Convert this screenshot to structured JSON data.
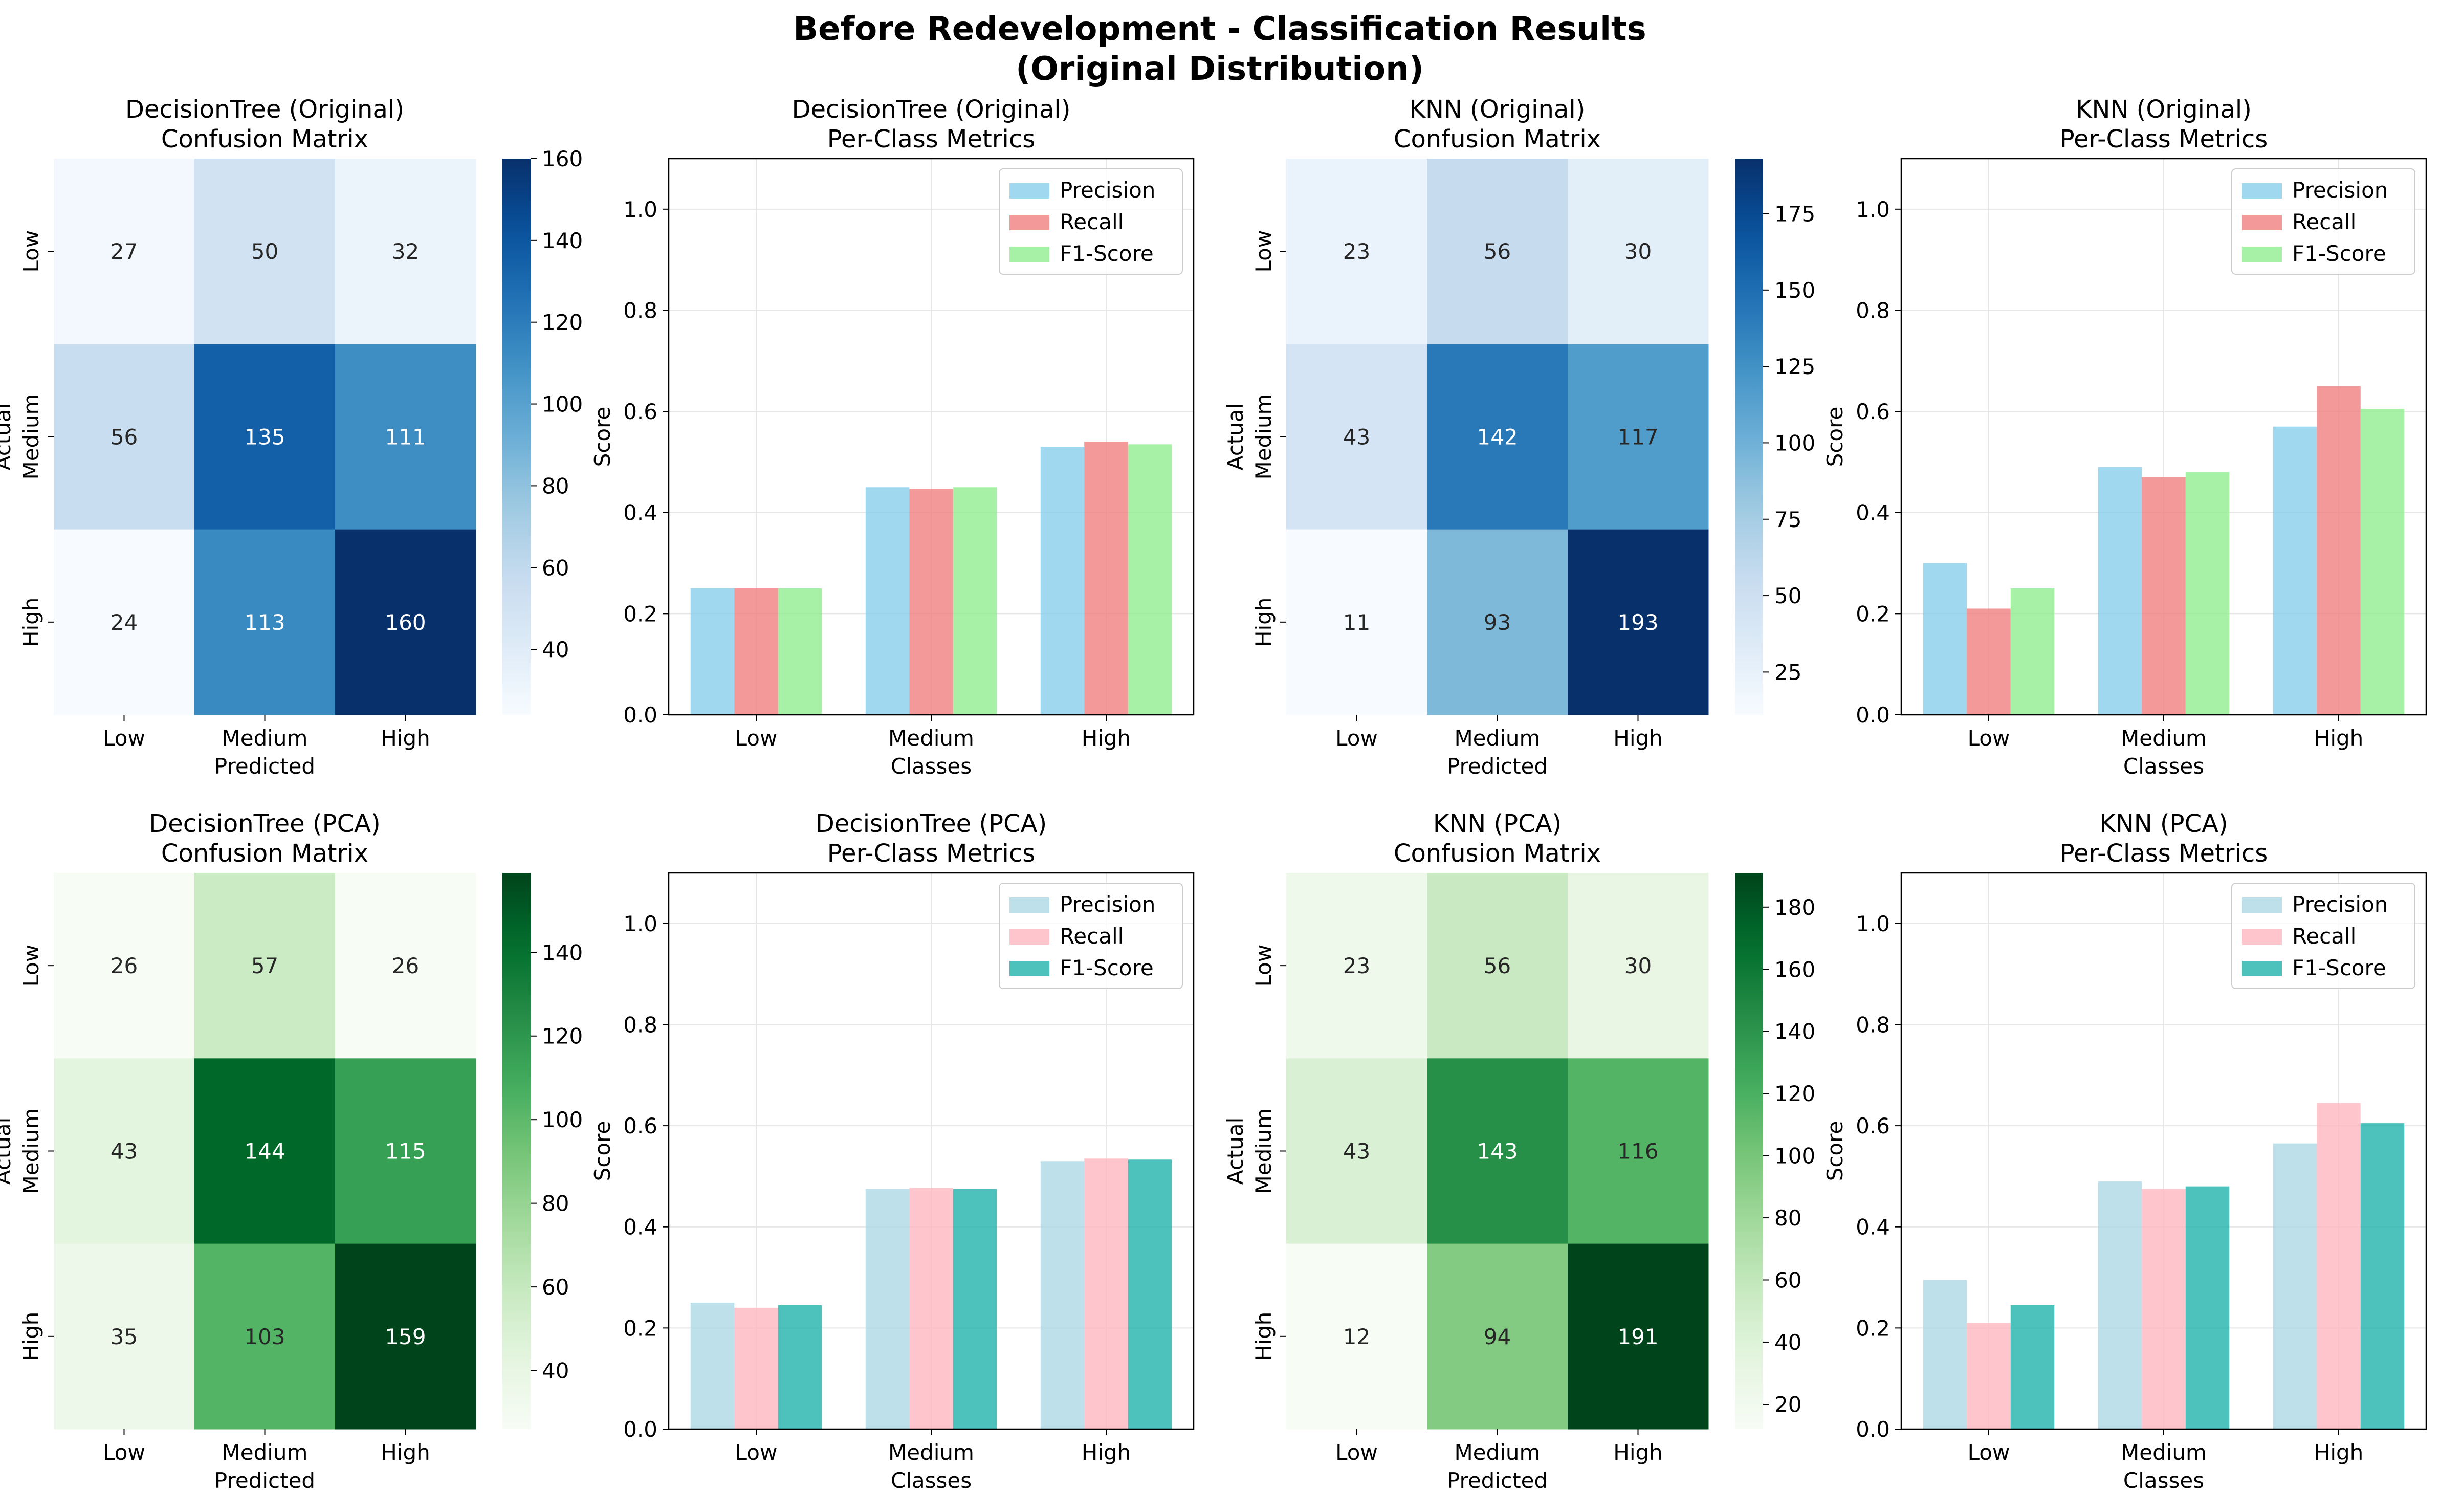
{
  "figure": {
    "title_line1": "Before Redevelopment - Classification Results",
    "title_line2": "(Original Distribution)"
  },
  "chart_data": [
    {
      "type": "heatmap",
      "title": [
        "DecisionTree (Original)",
        "Confusion Matrix"
      ],
      "xlabel": "Predicted",
      "ylabel": "Actual",
      "x_categories": [
        "Low",
        "Medium",
        "High"
      ],
      "y_categories": [
        "Low",
        "Medium",
        "High"
      ],
      "values": [
        [
          27,
          50,
          32
        ],
        [
          56,
          135,
          111
        ],
        [
          24,
          113,
          160
        ]
      ],
      "colormap": "Blues",
      "colorbar": {
        "min": 24,
        "max": 160,
        "ticks": [
          40,
          60,
          80,
          100,
          120,
          140,
          160
        ]
      }
    },
    {
      "type": "bar",
      "title": [
        "DecisionTree (Original)",
        "Per-Class Metrics"
      ],
      "xlabel": "Classes",
      "ylabel": "Score",
      "categories": [
        "Low",
        "Medium",
        "High"
      ],
      "series": [
        {
          "name": "Precision",
          "color": "#87ceeb",
          "values": [
            0.25,
            0.45,
            0.53
          ]
        },
        {
          "name": "Recall",
          "color": "#f08080",
          "values": [
            0.25,
            0.447,
            0.54
          ]
        },
        {
          "name": "F1-Score",
          "color": "#90ee90",
          "values": [
            0.25,
            0.45,
            0.535
          ]
        }
      ],
      "ylim": [
        0,
        1.1
      ],
      "yticks": [
        0.0,
        0.2,
        0.4,
        0.6,
        0.8,
        1.0
      ],
      "grid": true,
      "legend": "top-right"
    },
    {
      "type": "heatmap",
      "title": [
        "KNN (Original)",
        "Confusion Matrix"
      ],
      "xlabel": "Predicted",
      "ylabel": "Actual",
      "x_categories": [
        "Low",
        "Medium",
        "High"
      ],
      "y_categories": [
        "Low",
        "Medium",
        "High"
      ],
      "values": [
        [
          23,
          56,
          30
        ],
        [
          43,
          142,
          117
        ],
        [
          11,
          93,
          193
        ]
      ],
      "colormap": "Blues",
      "colorbar": {
        "min": 11,
        "max": 193,
        "ticks": [
          25,
          50,
          75,
          100,
          125,
          150,
          175
        ]
      }
    },
    {
      "type": "bar",
      "title": [
        "KNN (Original)",
        "Per-Class Metrics"
      ],
      "xlabel": "Classes",
      "ylabel": "Score",
      "categories": [
        "Low",
        "Medium",
        "High"
      ],
      "series": [
        {
          "name": "Precision",
          "color": "#87ceeb",
          "values": [
            0.3,
            0.49,
            0.57
          ]
        },
        {
          "name": "Recall",
          "color": "#f08080",
          "values": [
            0.21,
            0.47,
            0.65
          ]
        },
        {
          "name": "F1-Score",
          "color": "#90ee90",
          "values": [
            0.25,
            0.48,
            0.605
          ]
        }
      ],
      "ylim": [
        0,
        1.1
      ],
      "yticks": [
        0.0,
        0.2,
        0.4,
        0.6,
        0.8,
        1.0
      ],
      "grid": true,
      "legend": "top-right"
    },
    {
      "type": "heatmap",
      "title": [
        "DecisionTree (PCA)",
        "Confusion Matrix"
      ],
      "xlabel": "Predicted",
      "ylabel": "Actual",
      "x_categories": [
        "Low",
        "Medium",
        "High"
      ],
      "y_categories": [
        "Low",
        "Medium",
        "High"
      ],
      "values": [
        [
          26,
          57,
          26
        ],
        [
          43,
          144,
          115
        ],
        [
          35,
          103,
          159
        ]
      ],
      "colormap": "Greens",
      "colorbar": {
        "min": 26,
        "max": 159,
        "ticks": [
          40,
          60,
          80,
          100,
          120,
          140
        ]
      }
    },
    {
      "type": "bar",
      "title": [
        "DecisionTree (PCA)",
        "Per-Class Metrics"
      ],
      "xlabel": "Classes",
      "ylabel": "Score",
      "categories": [
        "Low",
        "Medium",
        "High"
      ],
      "series": [
        {
          "name": "Precision",
          "color": "#add8e6",
          "values": [
            0.25,
            0.475,
            0.53
          ]
        },
        {
          "name": "Recall",
          "color": "#ffb6c1",
          "values": [
            0.24,
            0.477,
            0.535
          ]
        },
        {
          "name": "F1-Score",
          "color": "#20b2aa",
          "values": [
            0.245,
            0.475,
            0.533
          ]
        }
      ],
      "ylim": [
        0,
        1.1
      ],
      "yticks": [
        0.0,
        0.2,
        0.4,
        0.6,
        0.8,
        1.0
      ],
      "grid": true,
      "legend": "top-right"
    },
    {
      "type": "heatmap",
      "title": [
        "KNN (PCA)",
        "Confusion Matrix"
      ],
      "xlabel": "Predicted",
      "ylabel": "Actual",
      "x_categories": [
        "Low",
        "Medium",
        "High"
      ],
      "y_categories": [
        "Low",
        "Medium",
        "High"
      ],
      "values": [
        [
          23,
          56,
          30
        ],
        [
          43,
          143,
          116
        ],
        [
          12,
          94,
          191
        ]
      ],
      "colormap": "Greens",
      "colorbar": {
        "min": 12,
        "max": 191,
        "ticks": [
          20,
          40,
          60,
          80,
          100,
          120,
          140,
          160,
          180
        ]
      }
    },
    {
      "type": "bar",
      "title": [
        "KNN (PCA)",
        "Per-Class Metrics"
      ],
      "xlabel": "Classes",
      "ylabel": "Score",
      "categories": [
        "Low",
        "Medium",
        "High"
      ],
      "series": [
        {
          "name": "Precision",
          "color": "#add8e6",
          "values": [
            0.295,
            0.49,
            0.565
          ]
        },
        {
          "name": "Recall",
          "color": "#ffb6c1",
          "values": [
            0.21,
            0.475,
            0.645
          ]
        },
        {
          "name": "F1-Score",
          "color": "#20b2aa",
          "values": [
            0.245,
            0.48,
            0.605
          ]
        }
      ],
      "ylim": [
        0,
        1.1
      ],
      "yticks": [
        0.0,
        0.2,
        0.4,
        0.6,
        0.8,
        1.0
      ],
      "grid": true,
      "legend": "top-right"
    }
  ]
}
